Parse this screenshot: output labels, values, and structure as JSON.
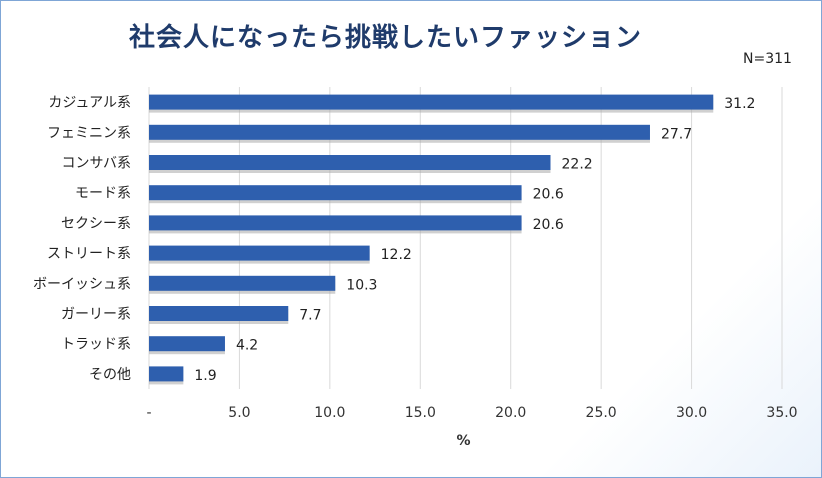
{
  "chart_data": {
    "type": "bar",
    "orientation": "horizontal",
    "title": "社会人になったら挑戦したいファッション",
    "note": "N=311",
    "xlabel": "%",
    "ylabel": "",
    "xlim": [
      0,
      35
    ],
    "x_ticks": [
      "-",
      "5.0",
      "10.0",
      "15.0",
      "20.0",
      "25.0",
      "30.0",
      "35.0"
    ],
    "grid": true,
    "bar_color": "#2e5fae",
    "categories": [
      "カジュアル系",
      "フェミニン系",
      "コンサバ系",
      "モード系",
      "セクシー系",
      "ストリート系",
      "ボーイッシュ系",
      "ガーリー系",
      "トラッド系",
      "その他"
    ],
    "values": [
      31.2,
      27.7,
      22.2,
      20.6,
      20.6,
      12.2,
      10.3,
      7.7,
      4.2,
      1.9
    ],
    "value_labels": [
      "31.2",
      "27.7",
      "22.2",
      "20.6",
      "20.6",
      "12.2",
      "10.3",
      "7.7",
      "4.2",
      "1.9"
    ]
  }
}
